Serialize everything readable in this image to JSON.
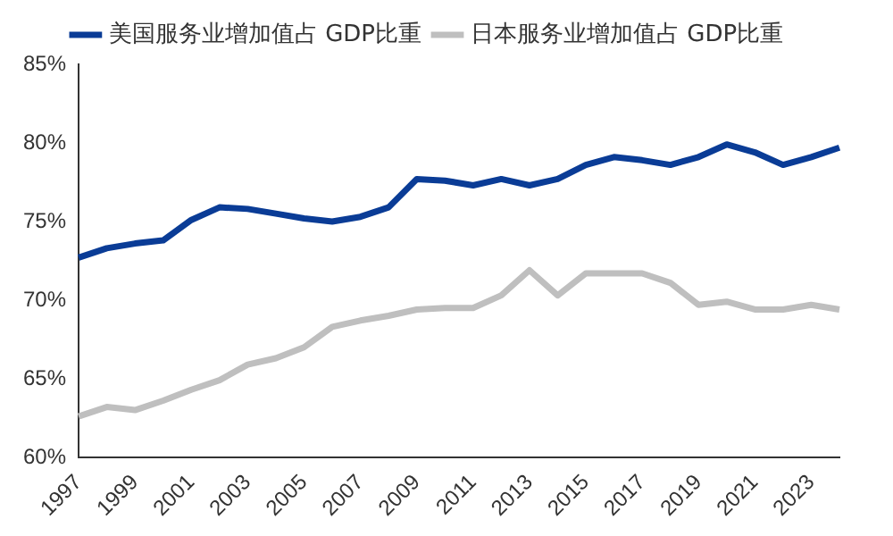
{
  "chart_data": {
    "type": "line",
    "categories": [
      "1997",
      null,
      "1999",
      null,
      "2001",
      null,
      "2003",
      null,
      "2005",
      null,
      "2007",
      null,
      "2009",
      null,
      "2011",
      null,
      "2013",
      null,
      "2015",
      null,
      "2017",
      null,
      "2019",
      null,
      "2021",
      null,
      "2023",
      null
    ],
    "series": [
      {
        "name": "美国服务业增加值占 GDP比重",
        "color": "#0a3c96",
        "values": [
          72.7,
          73.3,
          73.6,
          73.8,
          75.1,
          75.9,
          75.8,
          75.5,
          75.2,
          75.0,
          75.3,
          75.9,
          77.7,
          77.6,
          77.3,
          77.7,
          77.3,
          77.7,
          78.6,
          79.1,
          78.9,
          78.6,
          79.1,
          79.9,
          79.4,
          78.6,
          79.1,
          79.7
        ]
      },
      {
        "name": "日本服务业增加值占 GDP比重",
        "color": "#bfbfbf",
        "values": [
          62.6,
          63.2,
          63.0,
          63.6,
          64.3,
          64.9,
          65.9,
          66.3,
          67.0,
          68.3,
          68.7,
          69.0,
          69.4,
          69.5,
          69.5,
          70.3,
          71.9,
          70.3,
          71.7,
          71.7,
          71.7,
          71.1,
          69.7,
          69.9,
          69.4,
          69.4,
          69.7,
          69.4
        ]
      }
    ],
    "ylim": [
      60,
      85
    ],
    "yticks": [
      {
        "value": 60,
        "label": "60%"
      },
      {
        "value": 65,
        "label": "65%"
      },
      {
        "value": 70,
        "label": "70%"
      },
      {
        "value": 75,
        "label": "75%"
      },
      {
        "value": 80,
        "label": "80%"
      },
      {
        "value": 85,
        "label": "85%"
      }
    ],
    "grid": false,
    "legend": "top",
    "marker": "none",
    "line_style": "solid"
  }
}
